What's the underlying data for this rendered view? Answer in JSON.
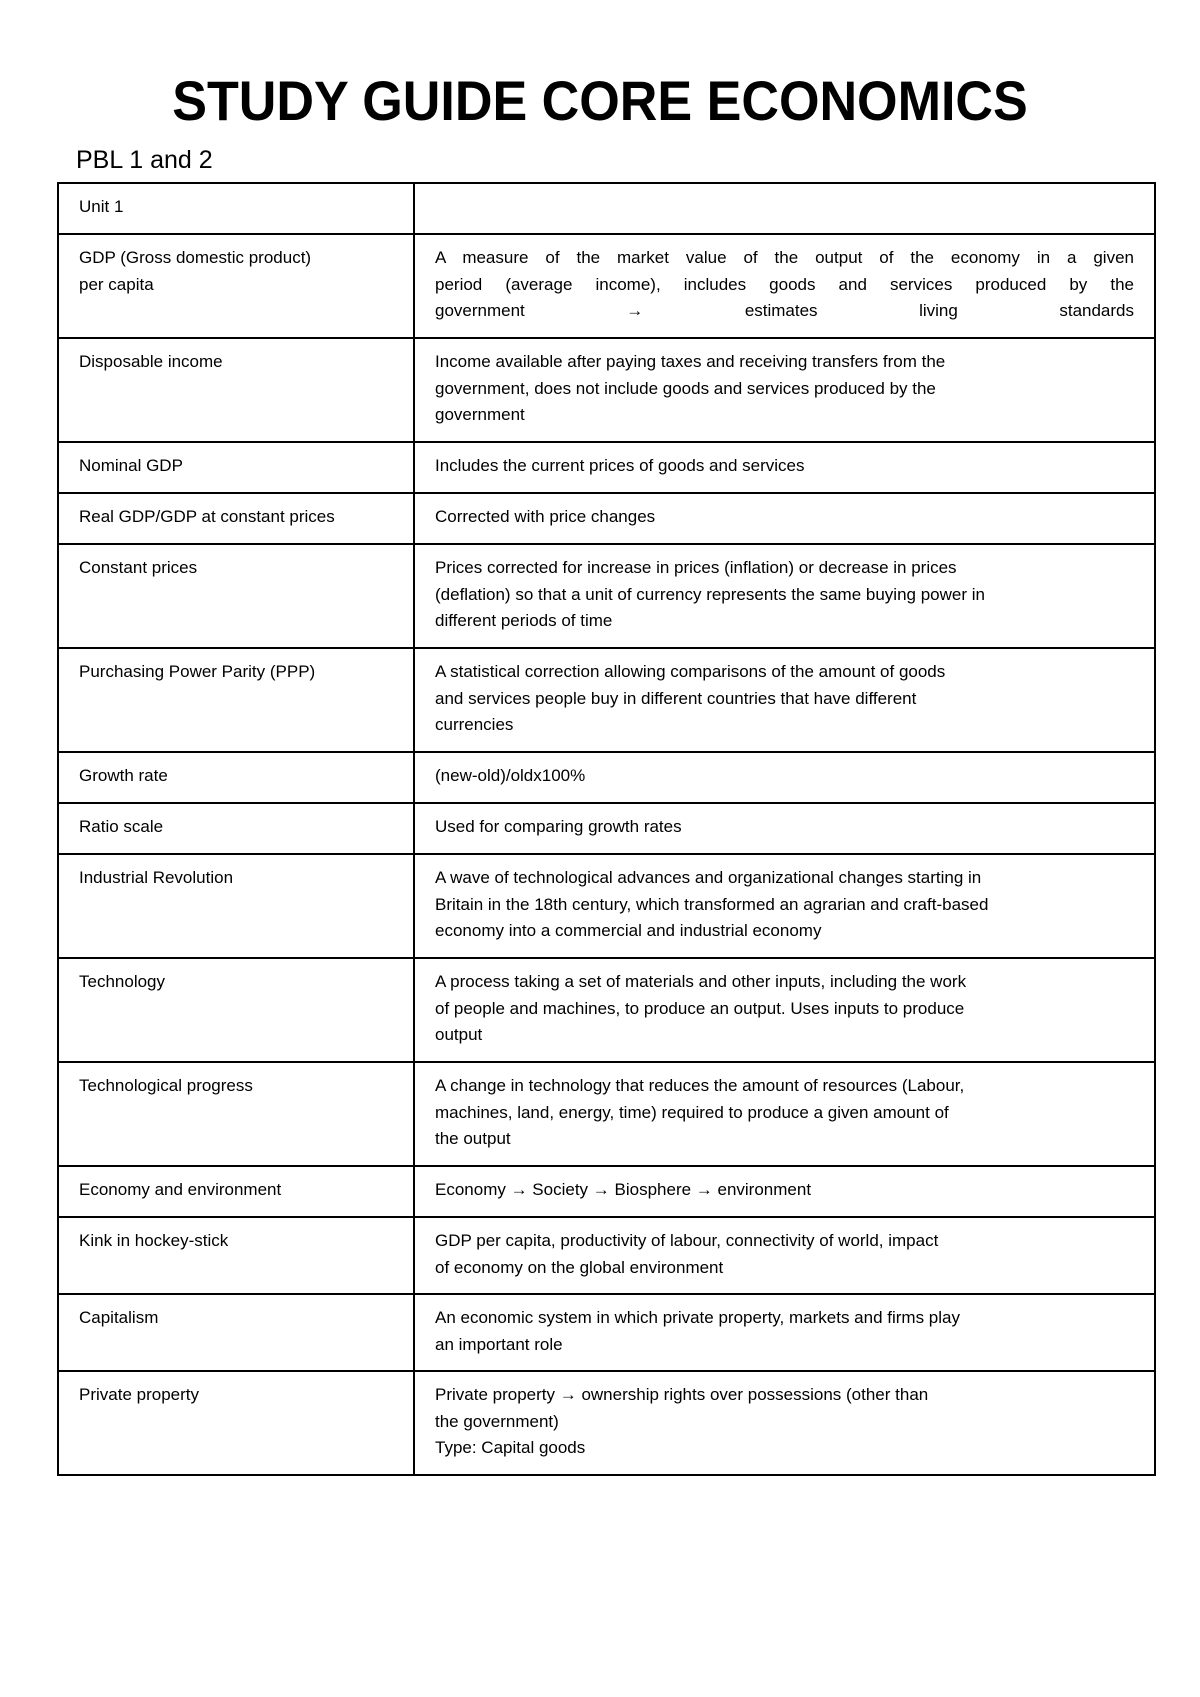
{
  "title": "STUDY GUIDE CORE ECONOMICS",
  "subtitle": "PBL 1 and 2",
  "rows": [
    {
      "term": [
        "Unit 1"
      ],
      "definition": []
    },
    {
      "term": [
        "GDP (Gross domestic product)",
        "per  capita"
      ],
      "definition": [
        "A measure of the market value of the output of the economy in a given",
        "period  (average income), includes goods and services produced by the",
        "government → estimates living standards"
      ],
      "justify": true
    },
    {
      "term": [
        "Disposable income"
      ],
      "definition": [
        "Income available after paying taxes and receiving transfers from the",
        "government, does not include goods and services produced by the",
        "government"
      ]
    },
    {
      "term": [
        "Nominal GDP"
      ],
      "definition": [
        "Includes the current prices of goods and services"
      ]
    },
    {
      "term": [
        "Real GDP/GDP at constant prices"
      ],
      "definition": [
        "Corrected with price changes"
      ]
    },
    {
      "term": [
        "Constant prices"
      ],
      "definition": [
        "Prices corrected for increase in prices (inflation) or decrease in prices",
        "(deflation)  so that a unit of currency represents the same buying power in",
        "different  periods of time"
      ]
    },
    {
      "term": [
        "Purchasing Power Parity (PPP)"
      ],
      "definition": [
        "A statistical correction allowing comparisons of the amount of goods",
        "and  services people buy in different countries that have different",
        "currencies"
      ]
    },
    {
      "term": [
        "Growth rate"
      ],
      "definition": [
        "(new-old)/oldx100%"
      ]
    },
    {
      "term": [
        "Ratio scale"
      ],
      "definition": [
        "Used for comparing growth rates"
      ]
    },
    {
      "term": [
        "Industrial Revolution"
      ],
      "definition": [
        "A wave of technological advances and organizational changes starting in",
        "Britain  in the 18th century, which transformed an agrarian and craft-based",
        "economy  into a commercial and industrial economy"
      ]
    },
    {
      "term": [
        "Technology"
      ],
      "definition": [
        "A process taking a set of materials and other inputs, including the work",
        "of  people and machines, to produce an output. Uses inputs to produce",
        "output"
      ]
    },
    {
      "term": [
        "Technological progress"
      ],
      "definition": [
        "A change in technology that reduces the amount of resources (Labour,",
        "machines, land, energy, time) required to produce a given amount of",
        "the  output"
      ]
    },
    {
      "term": [
        "Economy and environment"
      ],
      "definition": [
        "Economy → Society → Biosphere → environment"
      ]
    },
    {
      "term": [
        "Kink in hockey-stick"
      ],
      "definition": [
        "GDP per capita, productivity of labour, connectivity of world, impact",
        "of  economy on the global environment"
      ]
    },
    {
      "term": [
        "Capitalism"
      ],
      "definition": [
        "An economic system in which private property, markets and firms play",
        "an  important role"
      ]
    },
    {
      "term": [
        "Private property"
      ],
      "definition": [
        "Private property → ownership rights over possessions (other than",
        "the  government)",
        "Type: Capital goods"
      ]
    }
  ]
}
